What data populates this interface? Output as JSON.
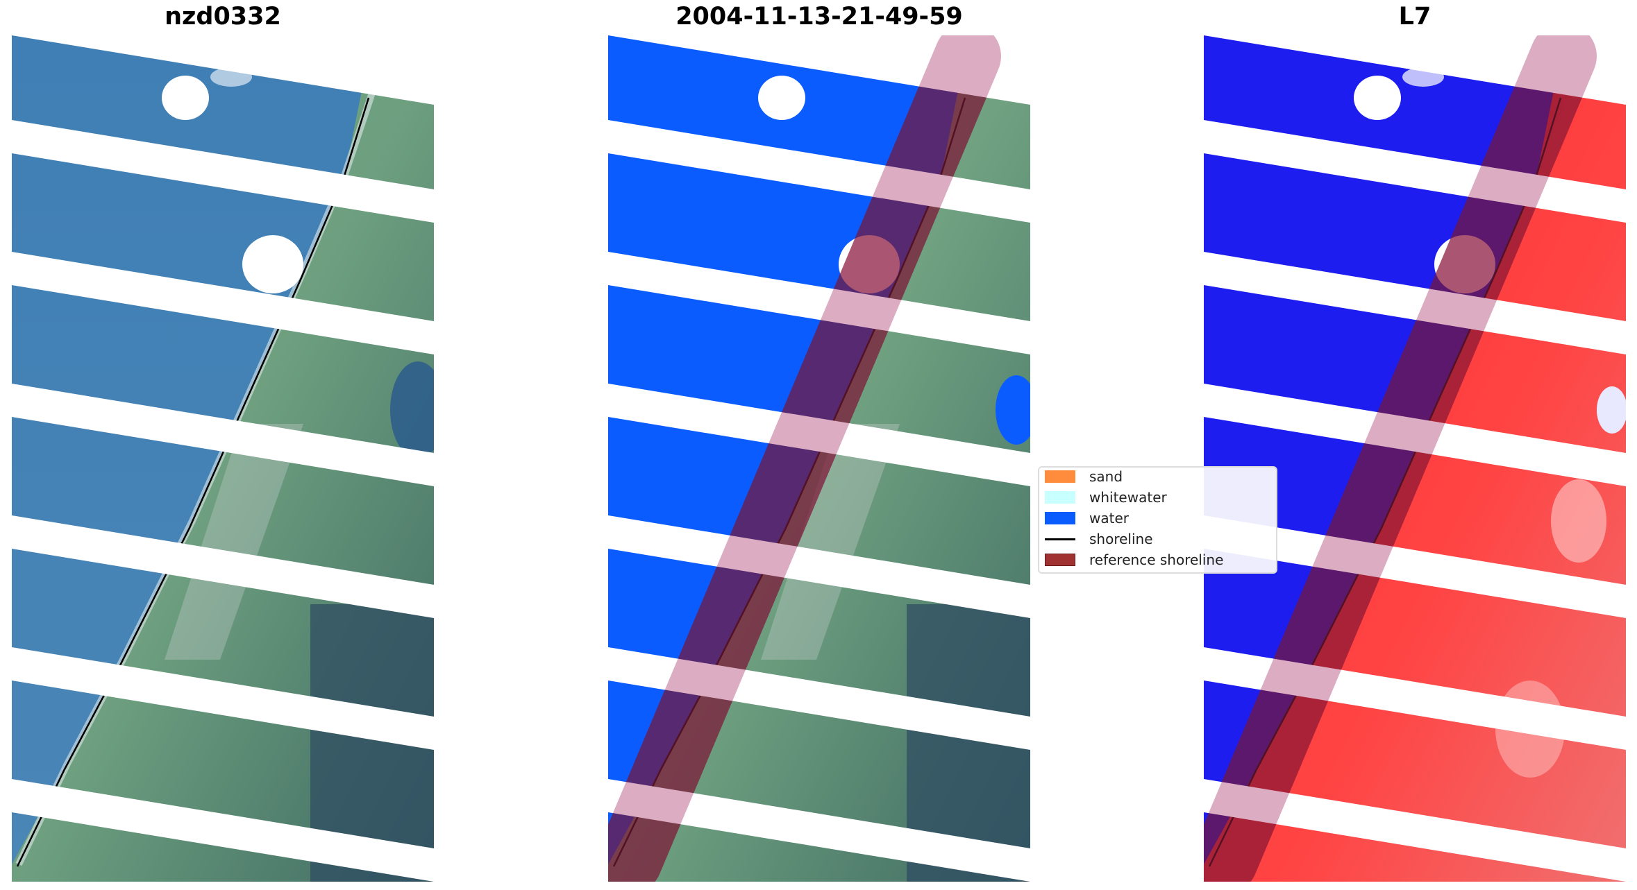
{
  "panels": [
    {
      "id": "rgb",
      "title": "nzd0332"
    },
    {
      "id": "classified",
      "title": "2004-11-13-21-49-59"
    },
    {
      "id": "mndwi",
      "title": "L7"
    }
  ],
  "legend": {
    "items": [
      {
        "label": "sand",
        "color": "#ff8c3c",
        "kind": "patch"
      },
      {
        "label": "whitewater",
        "color": "#c8ffff",
        "kind": "patch"
      },
      {
        "label": "water",
        "color": "#0a5cff",
        "kind": "patch"
      },
      {
        "label": "shoreline",
        "color": "#000000",
        "kind": "line"
      },
      {
        "label": "reference shoreline",
        "color": "#a03232",
        "kind": "patch"
      }
    ]
  },
  "colors": {
    "sea_rgb": "#3f7bb0",
    "land_rgb": "#5e9470",
    "water_class": "#0a5cff",
    "buffer": "#a0284f",
    "index_water": "#1d1df0",
    "index_land": "#ff1a1a"
  }
}
